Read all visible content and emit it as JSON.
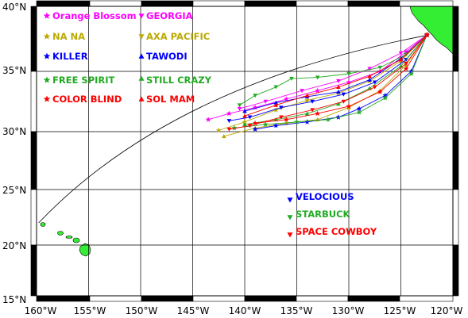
{
  "map": {
    "lon_labels": [
      "160°W",
      "155°W",
      "150°W",
      "145°W",
      "140°W",
      "135°W",
      "130°W",
      "125°W",
      "120°W"
    ],
    "lat_labels": [
      "15°N",
      "20°N",
      "25°N",
      "30°N",
      "35°N",
      "40°N"
    ],
    "land_color": "#33ee33",
    "ocean_color": "#ffffff",
    "frame_colors": [
      "#000000",
      "#ffffff"
    ]
  },
  "legend": [
    {
      "name": "Orange Blossom",
      "color": "#ff00ff",
      "marker": "star"
    },
    {
      "name": "GEORGIA",
      "color": "#ff00ff",
      "marker": "triangle-down"
    },
    {
      "name": "NA NA",
      "color": "#bbaa00",
      "marker": "star"
    },
    {
      "name": "AXA PACIFIC",
      "color": "#bbaa00",
      "marker": "triangle-down"
    },
    {
      "name": "KILLER",
      "color": "#0000ff",
      "marker": "star"
    },
    {
      "name": "TAWODI",
      "color": "#0000ff",
      "marker": "triangle-up"
    },
    {
      "name": "FREE SPIRIT",
      "color": "#22aa22",
      "marker": "star"
    },
    {
      "name": "STILL CRAZY",
      "color": "#22aa22",
      "marker": "triangle-up"
    },
    {
      "name": "COLOR BLIND",
      "color": "#ff0000",
      "marker": "star"
    },
    {
      "name": "SOL MAM",
      "color": "#ff0000",
      "marker": "triangle-up"
    },
    {
      "name": "VELOCIOUS",
      "color": "#0000ff",
      "marker": "triangle-down"
    },
    {
      "name": "STARBUCK",
      "color": "#22aa22",
      "marker": "triangle-down"
    },
    {
      "name": "SPACE COWBOY",
      "color": "#ff0000",
      "marker": "triangle-down"
    }
  ],
  "great_circle": {
    "from": [
      -122.3,
      37.8
    ],
    "to": [
      -159.8,
      22.0
    ],
    "control": [
      -147.0,
      34.0
    ]
  },
  "tracks": [
    {
      "color": "#ff00ff",
      "pts": [
        [
          -122.5,
          37.8
        ],
        [
          -124.5,
          36.5
        ],
        [
          -127.0,
          35.0
        ],
        [
          -130.0,
          34.1
        ],
        [
          -133.0,
          33.4
        ],
        [
          -136.0,
          32.7
        ],
        [
          -139.0,
          32.0
        ],
        [
          -141.5,
          31.5
        ],
        [
          -143.5,
          31.0
        ]
      ]
    },
    {
      "color": "#ff00ff",
      "pts": [
        [
          -122.5,
          37.8
        ],
        [
          -125.0,
          36.4
        ],
        [
          -128.0,
          35.2
        ],
        [
          -131.0,
          34.2
        ],
        [
          -134.5,
          33.4
        ],
        [
          -138.0,
          32.5
        ],
        [
          -140.5,
          31.9
        ]
      ]
    },
    {
      "color": "#bbaa00",
      "pts": [
        [
          -122.5,
          37.8
        ],
        [
          -124.5,
          35.5
        ],
        [
          -127.0,
          33.4
        ],
        [
          -130.0,
          32.0
        ],
        [
          -133.0,
          31.0
        ],
        [
          -136.0,
          30.7
        ],
        [
          -139.0,
          30.3
        ],
        [
          -142.0,
          29.6
        ]
      ]
    },
    {
      "color": "#bbaa00",
      "pts": [
        [
          -122.5,
          37.8
        ],
        [
          -125.0,
          35.8
        ],
        [
          -128.0,
          34.2
        ],
        [
          -131.0,
          33.2
        ],
        [
          -134.0,
          32.6
        ],
        [
          -137.0,
          31.8
        ],
        [
          -140.0,
          30.8
        ],
        [
          -142.5,
          30.1
        ]
      ]
    },
    {
      "color": "#0000ff",
      "pts": [
        [
          -122.5,
          37.8
        ],
        [
          -124.5,
          35.9
        ],
        [
          -127.5,
          34.1
        ],
        [
          -130.5,
          33.1
        ],
        [
          -133.5,
          32.5
        ],
        [
          -136.5,
          32.0
        ],
        [
          -139.5,
          31.2
        ],
        [
          -141.5,
          30.9
        ]
      ]
    },
    {
      "color": "#0000ff",
      "pts": [
        [
          -122.5,
          37.8
        ],
        [
          -125.0,
          36.0
        ],
        [
          -128.0,
          34.3
        ],
        [
          -131.0,
          33.3
        ],
        [
          -134.0,
          32.9
        ],
        [
          -137.0,
          32.4
        ],
        [
          -140.0,
          31.7
        ]
      ]
    },
    {
      "color": "#0000ff",
      "pts": [
        [
          -122.5,
          37.8
        ],
        [
          -124.0,
          35.0
        ],
        [
          -126.5,
          33.0
        ],
        [
          -129.0,
          31.9
        ],
        [
          -131.0,
          31.2
        ],
        [
          -134.0,
          30.8
        ],
        [
          -137.0,
          30.5
        ],
        [
          -139.0,
          30.2
        ]
      ]
    },
    {
      "color": "#22aa22",
      "pts": [
        [
          -122.5,
          37.8
        ],
        [
          -124.5,
          36.3
        ],
        [
          -127.0,
          35.3
        ],
        [
          -130.0,
          34.8
        ],
        [
          -133.0,
          34.5
        ],
        [
          -135.5,
          34.4
        ],
        [
          -137.0,
          33.7
        ],
        [
          -139.0,
          33.0
        ],
        [
          -140.5,
          32.2
        ]
      ]
    },
    {
      "color": "#22aa22",
      "pts": [
        [
          -122.5,
          37.8
        ],
        [
          -125.0,
          35.4
        ],
        [
          -128.0,
          33.6
        ],
        [
          -131.0,
          32.3
        ],
        [
          -134.0,
          31.5
        ],
        [
          -137.0,
          31.0
        ],
        [
          -140.0,
          30.6
        ]
      ]
    },
    {
      "color": "#22aa22",
      "pts": [
        [
          -122.5,
          37.8
        ],
        [
          -124.0,
          34.8
        ],
        [
          -126.5,
          32.8
        ],
        [
          -129.0,
          31.6
        ],
        [
          -132.0,
          31.0
        ],
        [
          -135.0,
          30.8
        ],
        [
          -138.0,
          30.6
        ],
        [
          -141.0,
          30.3
        ]
      ]
    },
    {
      "color": "#ff0000",
      "pts": [
        [
          -122.5,
          37.8
        ],
        [
          -124.5,
          35.6
        ],
        [
          -127.5,
          33.7
        ],
        [
          -130.5,
          32.5
        ],
        [
          -133.5,
          31.8
        ],
        [
          -136.5,
          31.2
        ],
        [
          -139.5,
          30.5
        ],
        [
          -141.5,
          30.2
        ]
      ]
    },
    {
      "color": "#ff0000",
      "pts": [
        [
          -122.5,
          37.8
        ],
        [
          -125.0,
          35.9
        ],
        [
          -128.0,
          34.6
        ],
        [
          -131.0,
          33.7
        ],
        [
          -134.0,
          33.0
        ],
        [
          -137.0,
          32.2
        ],
        [
          -140.0,
          31.3
        ]
      ]
    },
    {
      "color": "#ff0000",
      "pts": [
        [
          -122.5,
          37.8
        ],
        [
          -124.5,
          35.2
        ],
        [
          -127.0,
          33.3
        ],
        [
          -130.0,
          32.1
        ],
        [
          -133.0,
          31.5
        ],
        [
          -136.0,
          31.0
        ],
        [
          -139.0,
          30.7
        ]
      ]
    }
  ]
}
